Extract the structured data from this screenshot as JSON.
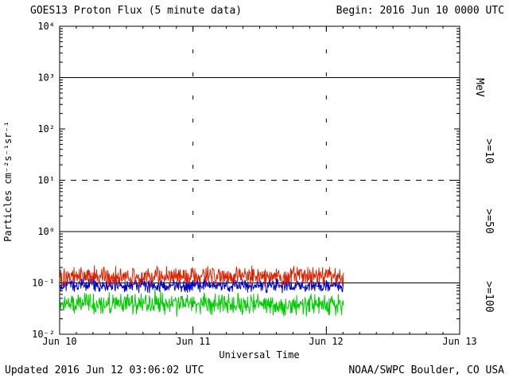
{
  "header": {
    "title": "GOES13 Proton Flux (5 minute data)",
    "begin_label": "Begin: 2016 Jun 10 0000 UTC"
  },
  "footer": {
    "updated": "Updated 2016 Jun 12 03:06:02 UTC",
    "source": "NOAA/SWPC Boulder, CO USA"
  },
  "chart_data": {
    "type": "line",
    "title": "GOES13 Proton Flux (5 minute data)",
    "xlabel": "Universal Time",
    "ylabel": "Particles  cm⁻²s⁻¹sr⁻¹",
    "right_axis_label": "MeV",
    "x_tick_labels": [
      "Jun 10",
      "Jun 11",
      "Jun 12",
      "Jun 13"
    ],
    "x_range_days": [
      0,
      3
    ],
    "y_log_range": [
      -2,
      4
    ],
    "y_tick_labels": [
      "10⁴",
      "10³",
      "10²",
      "10¹",
      "10⁰",
      "10⁻¹",
      "10⁻²"
    ],
    "y_tick_exponents": [
      4,
      3,
      2,
      1,
      0,
      -1,
      -2
    ],
    "solid_hlines_exp": [
      3,
      0,
      -1
    ],
    "dashed_hlines_exp": [
      1
    ],
    "vertical_gridline_days": [
      1,
      2
    ],
    "grid": "on",
    "legend_position": "right-rotated",
    "legend": [
      {
        "label": ">=10",
        "color": "#dd2200"
      },
      {
        "label": ">=50",
        "color": "#0000cc"
      },
      {
        "label": ">=100",
        "color": "#00cc00"
      }
    ],
    "series": [
      {
        "name": ">=100 MeV",
        "color": "#00cc00",
        "log10_mean": -1.42,
        "log10_sigma": 0.16,
        "approx_range": [
          0.02,
          0.09
        ],
        "seed": 303
      },
      {
        "name": ">=50 MeV",
        "color": "#0000cc",
        "log10_mean": -1.05,
        "log10_sigma": 0.1,
        "approx_range": [
          0.06,
          0.18
        ],
        "seed": 202
      },
      {
        "name": ">=10 MeV",
        "color": "#dd2200",
        "log10_mean": -0.87,
        "log10_sigma": 0.15,
        "approx_range": [
          0.08,
          0.3
        ],
        "seed": 101
      }
    ],
    "data_start_day": 0,
    "data_end_day": 2.13,
    "sample_interval_minutes": 5
  }
}
